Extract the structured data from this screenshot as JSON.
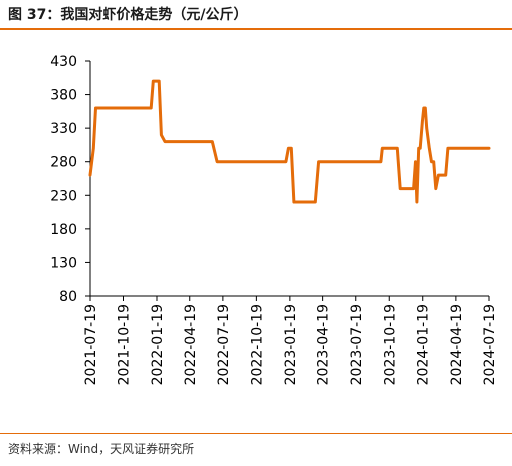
{
  "title": "图 37：我国对虾价格走势（元/公斤）",
  "source": "资料来源：Wind，天风证券研究所",
  "colors": {
    "series": "#e46c0a",
    "accent": "#e46c0a",
    "axis": "#000000"
  },
  "chart_data": {
    "type": "line",
    "title": "",
    "xlabel": "",
    "ylabel": "",
    "grid": false,
    "ylim": [
      80,
      430
    ],
    "yticks": [
      80,
      130,
      180,
      230,
      280,
      330,
      380,
      430
    ],
    "xticks": [
      "2021-07-19",
      "2021-10-19",
      "2022-01-19",
      "2022-04-19",
      "2022-07-19",
      "2022-10-19",
      "2023-01-19",
      "2023-04-19",
      "2023-07-19",
      "2023-10-19",
      "2024-01-19",
      "2024-04-19",
      "2024-07-19"
    ],
    "series": [
      {
        "name": "",
        "points": [
          [
            "2021-07-19",
            260
          ],
          [
            "2021-07-28",
            300
          ],
          [
            "2021-08-03",
            360
          ],
          [
            "2022-01-03",
            360
          ],
          [
            "2022-01-09",
            400
          ],
          [
            "2022-01-25",
            400
          ],
          [
            "2022-01-31",
            320
          ],
          [
            "2022-02-10",
            310
          ],
          [
            "2022-06-20",
            310
          ],
          [
            "2022-07-03",
            280
          ],
          [
            "2023-01-08",
            280
          ],
          [
            "2023-01-15",
            300
          ],
          [
            "2023-01-23",
            300
          ],
          [
            "2023-01-30",
            220
          ],
          [
            "2023-03-30",
            220
          ],
          [
            "2023-04-08",
            280
          ],
          [
            "2023-09-26",
            280
          ],
          [
            "2023-09-30",
            300
          ],
          [
            "2023-11-10",
            300
          ],
          [
            "2023-11-18",
            240
          ],
          [
            "2023-12-25",
            240
          ],
          [
            "2023-12-30",
            280
          ],
          [
            "2024-01-03",
            220
          ],
          [
            "2024-01-08",
            300
          ],
          [
            "2024-01-12",
            300
          ],
          [
            "2024-01-18",
            340
          ],
          [
            "2024-01-22",
            360
          ],
          [
            "2024-01-26",
            360
          ],
          [
            "2024-01-30",
            330
          ],
          [
            "2024-02-06",
            300
          ],
          [
            "2024-02-12",
            280
          ],
          [
            "2024-02-18",
            280
          ],
          [
            "2024-02-24",
            240
          ],
          [
            "2024-03-02",
            260
          ],
          [
            "2024-03-22",
            260
          ],
          [
            "2024-03-28",
            300
          ],
          [
            "2024-07-19",
            300
          ]
        ]
      }
    ]
  }
}
